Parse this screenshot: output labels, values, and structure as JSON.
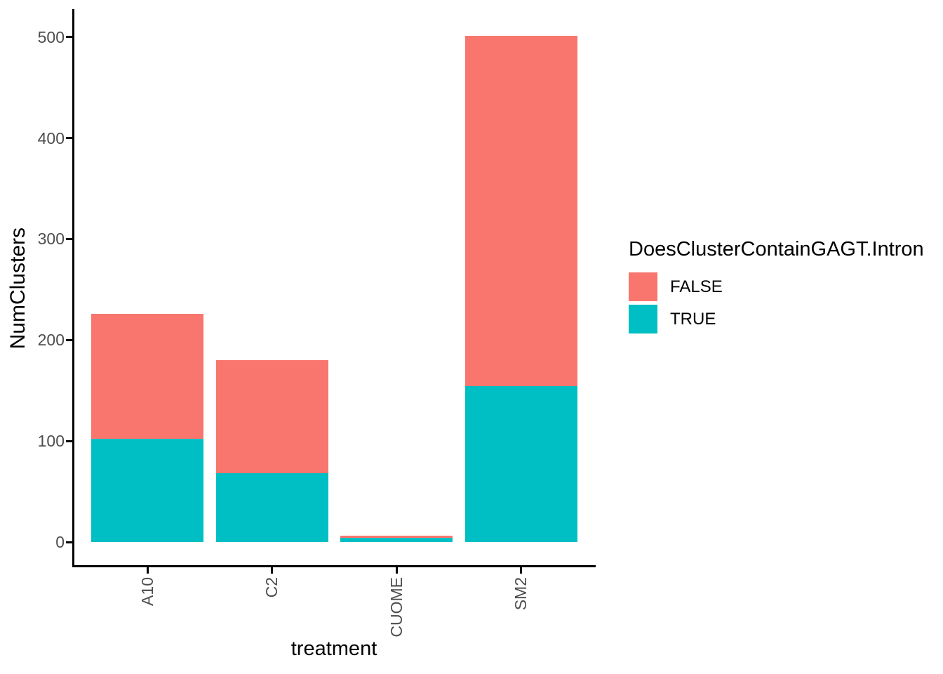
{
  "chart_data": {
    "type": "bar",
    "stacked": true,
    "title": "",
    "xlabel": "treatment",
    "ylabel": "NumClusters",
    "categories": [
      "A10",
      "C2",
      "CUOME",
      "SM2"
    ],
    "series": [
      {
        "name": "FALSE",
        "color": "#F8766D",
        "values": [
          124,
          112,
          2,
          347
        ]
      },
      {
        "name": "TRUE",
        "color": "#00BFC4",
        "values": [
          102,
          68,
          4,
          154
        ]
      }
    ],
    "totals": [
      226,
      180,
      6,
      501
    ],
    "stack_order_bottom_to_top": [
      "TRUE",
      "FALSE"
    ],
    "ylim": [
      0,
      527
    ],
    "yticks": [
      0,
      100,
      200,
      300,
      400,
      500
    ],
    "ytick_labels": [
      "0",
      "100",
      "200",
      "300",
      "400",
      "500"
    ],
    "xtick_labels": [
      "A10",
      "C2",
      "CUOME",
      "SM2"
    ],
    "x_label_rotation_deg": 90,
    "grid": false,
    "legend_position": "right"
  },
  "legend": {
    "title": "DoesClusterContainGAGT.Intron",
    "items": [
      {
        "label": "FALSE",
        "color": "#F8766D"
      },
      {
        "label": "TRUE",
        "color": "#00BFC4"
      }
    ]
  },
  "colors": {
    "false_fill": "#F8766D",
    "true_fill": "#00BFC4",
    "axis_text": "#4D4D4D",
    "axis_line": "#000000",
    "background": "#FFFFFF"
  }
}
